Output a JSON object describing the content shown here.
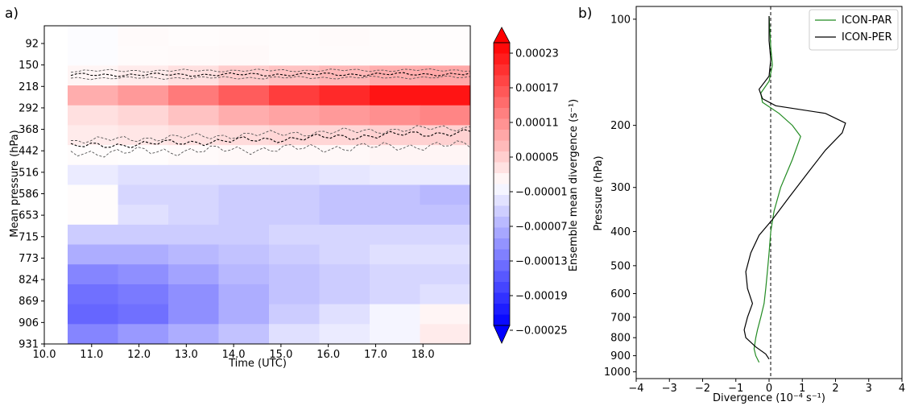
{
  "panel_labels": {
    "a": "a)",
    "b": "b)"
  },
  "chart_data": [
    {
      "type": "heatmap",
      "panel": "a)",
      "xlabel": "Time (UTC)",
      "ylabel": "Mean pressure (hPa)",
      "x_ticks": [
        "10.0",
        "11.0",
        "12.0",
        "13.0",
        "14.0",
        "15.0",
        "16.0",
        "17.0",
        "18.0"
      ],
      "xlim": [
        10.0,
        19.0
      ],
      "y_ticks": [
        "92",
        "150",
        "218",
        "292",
        "368",
        "442",
        "516",
        "586",
        "653",
        "715",
        "773",
        "824",
        "869",
        "906",
        "931"
      ],
      "colorbar": {
        "label": "Ensemble mean divergence (s⁻¹)",
        "ticks": [
          "0.00023",
          "0.00017",
          "0.00011",
          "0.00005",
          "−0.00001",
          "−0.00007",
          "−0.00013",
          "−0.00019",
          "−0.00025"
        ],
        "range": [
          -0.00025,
          0.00025
        ],
        "colormap": "bwr",
        "colors": {
          "neg": "#0000ff",
          "mid": "#ffffff",
          "pos": "#ff0000"
        }
      },
      "approx_values_1e5": [
        [
          -0.3,
          0.5,
          0.3,
          0.4,
          0.3,
          0.5,
          0.3,
          0.2
        ],
        [
          -0.3,
          0.4,
          0.5,
          0.6,
          0.3,
          0.4,
          0.3,
          0.2
        ],
        [
          1,
          2,
          3,
          5,
          6,
          7,
          8,
          8.5
        ],
        [
          8,
          10,
          13,
          16,
          19,
          21,
          23,
          23
        ],
        [
          3,
          4,
          6,
          8,
          9,
          10,
          11,
          12
        ],
        [
          2,
          2.5,
          3,
          3.5,
          4,
          4,
          4.5,
          4.5
        ],
        [
          0.3,
          0.2,
          0.5,
          0.7,
          0.7,
          0.7,
          1,
          1
        ],
        [
          -2,
          -3,
          -3,
          -3,
          -3,
          -2.5,
          -2,
          -2
        ],
        [
          0.3,
          -4,
          -4,
          -5,
          -5,
          -6,
          -6,
          -7
        ],
        [
          0.3,
          -3,
          -4,
          -5,
          -5,
          -6,
          -6,
          -6
        ],
        [
          -5,
          -5,
          -5,
          -5,
          -4,
          -4,
          -4,
          -4
        ],
        [
          -8,
          -8,
          -7,
          -6,
          -5,
          -4,
          -3,
          -3
        ],
        [
          -12,
          -11,
          -9,
          -7,
          -6,
          -5,
          -4,
          -4
        ],
        [
          -14,
          -13,
          -11,
          -8,
          -6,
          -5,
          -4,
          -3
        ],
        [
          -15,
          -14,
          -11,
          -8,
          -5,
          -3,
          -1,
          1
        ],
        [
          -12,
          -10,
          -8,
          -6,
          -3,
          -2,
          -1,
          2
        ]
      ]
    },
    {
      "type": "line",
      "panel": "b)",
      "xlabel": "Divergence (10⁻⁴ s⁻¹)",
      "ylabel": "Pressure (hPa)",
      "xlim": [
        -4,
        4
      ],
      "x_ticks": [
        "−4",
        "−3",
        "−2",
        "−1",
        "0",
        "1",
        "2",
        "3",
        "4"
      ],
      "y_scale": "log (inverted)",
      "y_ticks": [
        "100",
        "200",
        "300",
        "400",
        "500",
        "600",
        "700",
        "800",
        "900",
        "1000"
      ],
      "legend_position": "top-right",
      "series": [
        {
          "name": "ICON-PAR",
          "color": "#228b22",
          "points": [
            [
              0.0,
              98
            ],
            [
              0.05,
              120
            ],
            [
              0.1,
              135
            ],
            [
              0.0,
              150
            ],
            [
              -0.25,
              162
            ],
            [
              -0.2,
              172
            ],
            [
              0.3,
              185
            ],
            [
              0.7,
              200
            ],
            [
              0.95,
              215
            ],
            [
              0.7,
              250
            ],
            [
              0.35,
              300
            ],
            [
              0.15,
              350
            ],
            [
              0.05,
              400
            ],
            [
              0.0,
              460
            ],
            [
              -0.05,
              520
            ],
            [
              -0.1,
              580
            ],
            [
              -0.15,
              640
            ],
            [
              -0.25,
              700
            ],
            [
              -0.35,
              760
            ],
            [
              -0.4,
              800
            ],
            [
              -0.45,
              860
            ],
            [
              -0.4,
              900
            ],
            [
              -0.3,
              940
            ]
          ]
        },
        {
          "name": "ICON-PER",
          "color": "#000000",
          "points": [
            [
              0.0,
              98
            ],
            [
              0.0,
              115
            ],
            [
              0.05,
              130
            ],
            [
              0.0,
              145
            ],
            [
              -0.3,
              158
            ],
            [
              -0.2,
              168
            ],
            [
              0.2,
              176
            ],
            [
              1.7,
              185
            ],
            [
              2.3,
              197
            ],
            [
              2.2,
              210
            ],
            [
              1.7,
              235
            ],
            [
              1.2,
              270
            ],
            [
              0.6,
              320
            ],
            [
              0.1,
              370
            ],
            [
              -0.3,
              410
            ],
            [
              -0.55,
              460
            ],
            [
              -0.7,
              520
            ],
            [
              -0.65,
              580
            ],
            [
              -0.5,
              640
            ],
            [
              -0.65,
              700
            ],
            [
              -0.75,
              760
            ],
            [
              -0.7,
              800
            ],
            [
              -0.4,
              850
            ],
            [
              -0.1,
              890
            ],
            [
              0.0,
              920
            ]
          ]
        }
      ]
    }
  ]
}
